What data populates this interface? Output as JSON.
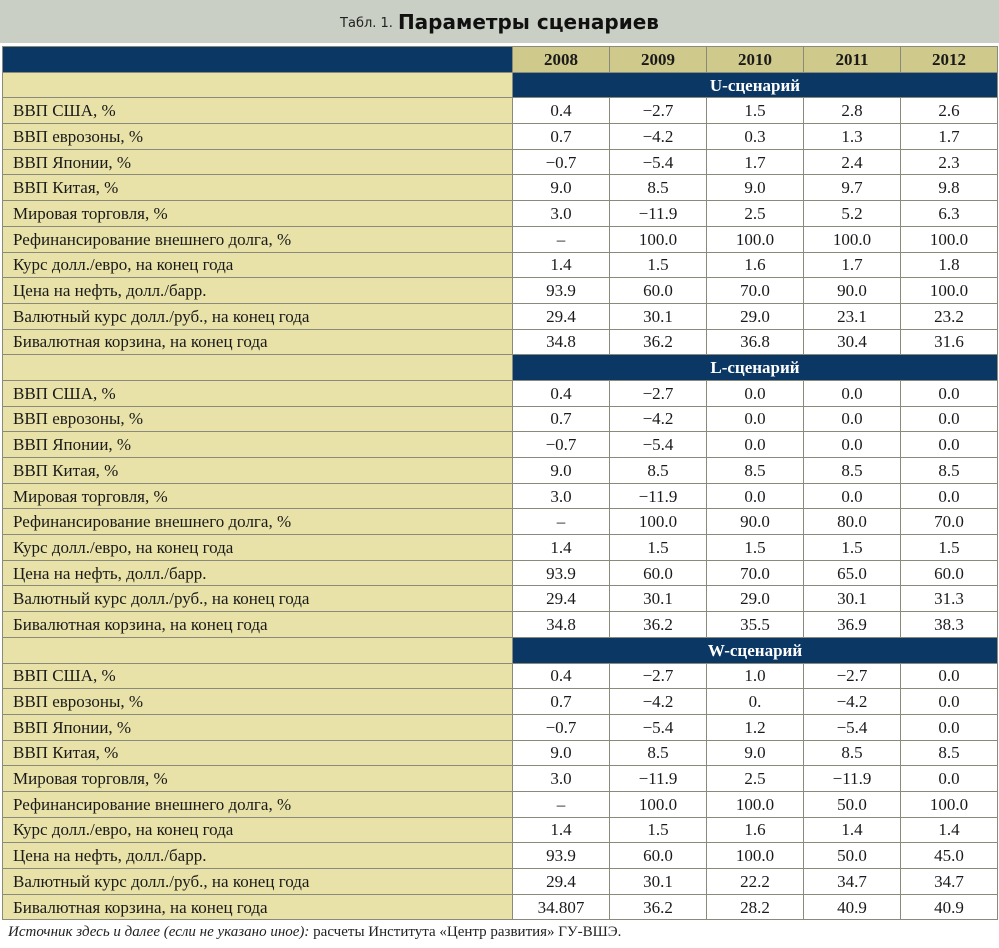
{
  "title": {
    "prefix": "Табл. 1.",
    "main": "Параметры сценариев"
  },
  "years": [
    "2008",
    "2009",
    "2010",
    "2011",
    "2012"
  ],
  "sections": [
    {
      "title": "U-сценарий",
      "rows": [
        {
          "label": "ВВП США, %",
          "values": [
            "0.4",
            "−2.7",
            "1.5",
            "2.8",
            "2.6"
          ]
        },
        {
          "label": "ВВП еврозоны, %",
          "values": [
            "0.7",
            "−4.2",
            "0.3",
            "1.3",
            "1.7"
          ]
        },
        {
          "label": "ВВП Японии, %",
          "values": [
            "−0.7",
            "−5.4",
            "1.7",
            "2.4",
            "2.3"
          ]
        },
        {
          "label": "ВВП Китая, %",
          "values": [
            "9.0",
            "8.5",
            "9.0",
            "9.7",
            "9.8"
          ]
        },
        {
          "label": "Мировая торговля, %",
          "values": [
            "3.0",
            "−11.9",
            "2.5",
            "5.2",
            "6.3"
          ]
        },
        {
          "label": "Рефинансирование внешнего долга, %",
          "values": [
            "–",
            "100.0",
            "100.0",
            "100.0",
            "100.0"
          ]
        },
        {
          "label": "Курс долл./евро, на конец года",
          "values": [
            "1.4",
            "1.5",
            "1.6",
            "1.7",
            "1.8"
          ]
        },
        {
          "label": "Цена на нефть, долл./барр.",
          "values": [
            "93.9",
            "60.0",
            "70.0",
            "90.0",
            "100.0"
          ]
        },
        {
          "label": "Валютный курс долл./руб., на конец года",
          "values": [
            "29.4",
            "30.1",
            "29.0",
            "23.1",
            "23.2"
          ]
        },
        {
          "label": "Бивалютная корзина, на конец года",
          "values": [
            "34.8",
            "36.2",
            "36.8",
            "30.4",
            "31.6"
          ]
        }
      ]
    },
    {
      "title": "L-сценарий",
      "rows": [
        {
          "label": "ВВП США, %",
          "values": [
            "0.4",
            "−2.7",
            "0.0",
            "0.0",
            "0.0"
          ]
        },
        {
          "label": "ВВП еврозоны, %",
          "values": [
            "0.7",
            "−4.2",
            "0.0",
            "0.0",
            "0.0"
          ]
        },
        {
          "label": "ВВП Японии, %",
          "values": [
            "−0.7",
            "−5.4",
            "0.0",
            "0.0",
            "0.0"
          ]
        },
        {
          "label": "ВВП Китая, %",
          "values": [
            "9.0",
            "8.5",
            "8.5",
            "8.5",
            "8.5"
          ]
        },
        {
          "label": "Мировая торговля, %",
          "values": [
            "3.0",
            "−11.9",
            "0.0",
            "0.0",
            "0.0"
          ]
        },
        {
          "label": "Рефинансирование внешнего долга, %",
          "values": [
            "–",
            "100.0",
            "90.0",
            "80.0",
            "70.0"
          ]
        },
        {
          "label": "Курс долл./евро, на конец года",
          "values": [
            "1.4",
            "1.5",
            "1.5",
            "1.5",
            "1.5"
          ]
        },
        {
          "label": "Цена на нефть, долл./барр.",
          "values": [
            "93.9",
            "60.0",
            "70.0",
            "65.0",
            "60.0"
          ]
        },
        {
          "label": "Валютный курс долл./руб., на конец года",
          "values": [
            "29.4",
            "30.1",
            "29.0",
            "30.1",
            "31.3"
          ]
        },
        {
          "label": "Бивалютная корзина, на конец года",
          "values": [
            "34.8",
            "36.2",
            "35.5",
            "36.9",
            "38.3"
          ]
        }
      ]
    },
    {
      "title": "W-сценарий",
      "rows": [
        {
          "label": "ВВП США, %",
          "values": [
            "0.4",
            "−2.7",
            "1.0",
            "−2.7",
            "0.0"
          ]
        },
        {
          "label": "ВВП еврозоны, %",
          "values": [
            "0.7",
            "−4.2",
            "0.",
            "−4.2",
            "0.0"
          ]
        },
        {
          "label": "ВВП Японии, %",
          "values": [
            "−0.7",
            "−5.4",
            "1.2",
            "−5.4",
            "0.0"
          ]
        },
        {
          "label": "ВВП Китая, %",
          "values": [
            "9.0",
            "8.5",
            "9.0",
            "8.5",
            "8.5"
          ]
        },
        {
          "label": "Мировая торговля, %",
          "values": [
            "3.0",
            "−11.9",
            "2.5",
            "−11.9",
            "0.0"
          ]
        },
        {
          "label": "Рефинансирование внешнего долга, %",
          "values": [
            "–",
            "100.0",
            "100.0",
            "50.0",
            "100.0"
          ]
        },
        {
          "label": "Курс долл./евро, на конец года",
          "values": [
            "1.4",
            "1.5",
            "1.6",
            "1.4",
            "1.4"
          ]
        },
        {
          "label": "Цена на нефть, долл./барр.",
          "values": [
            "93.9",
            "60.0",
            "100.0",
            "50.0",
            "45.0"
          ]
        },
        {
          "label": "Валютный курс долл./руб., на конец года",
          "values": [
            "29.4",
            "30.1",
            "22.2",
            "34.7",
            "34.7"
          ]
        },
        {
          "label": "Бивалютная корзина, на конец года",
          "values": [
            "34.807",
            "36.2",
            "28.2",
            "40.9",
            "40.9"
          ]
        }
      ]
    }
  ],
  "footnote": {
    "source_label": "Источник здесь и далее (если не указано иное):",
    "source_text": " расчеты Института «Центр развития»  ГУ-ВШЭ."
  },
  "colors": {
    "header_navy": "#0b3764",
    "year_header": "#cfc98b",
    "label_column": "#e8e1a8",
    "title_bar": "#c9cfc4"
  }
}
